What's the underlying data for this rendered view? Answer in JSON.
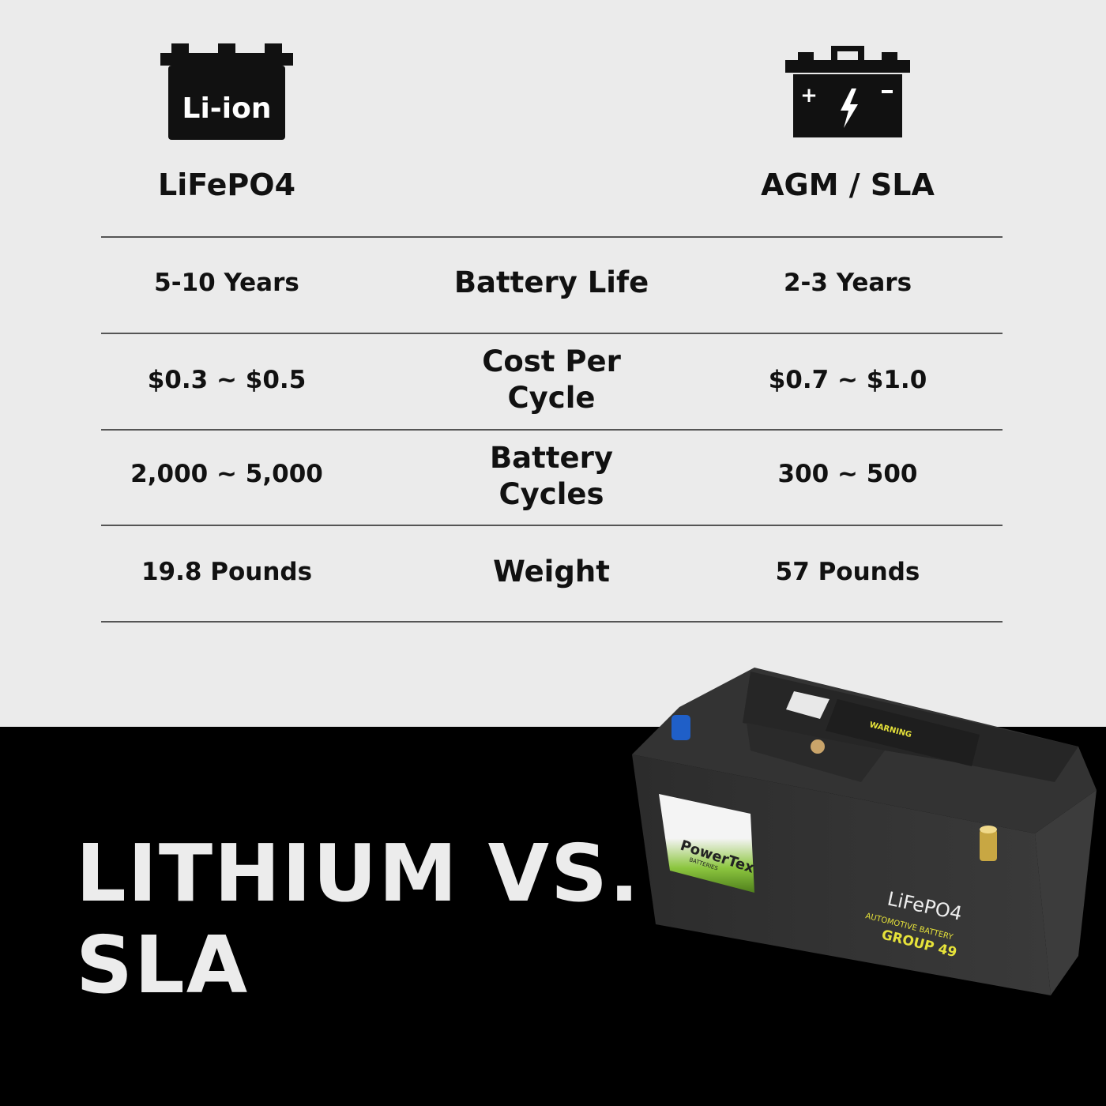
{
  "header": {
    "left": {
      "icon": "li-ion-battery-icon",
      "icon_text": "Li-ion",
      "label": "LiFePO4"
    },
    "right": {
      "icon": "lead-acid-battery-icon",
      "label": "AGM / SLA"
    }
  },
  "rows": [
    {
      "left": "5-10 Years",
      "label": "Battery Life",
      "right": "2-3 Years"
    },
    {
      "left": "$0.3 ~ $0.5",
      "label": "Cost Per Cycle",
      "right": "$0.7 ~ $1.0"
    },
    {
      "left": "2,000 ~ 5,000",
      "label": "Battery Cycles",
      "right": "300 ~ 500"
    },
    {
      "left": "19.8 Pounds",
      "label": "Weight",
      "right": "57 Pounds"
    }
  ],
  "title": {
    "line1": "LITHIUM VS.",
    "line2": "SLA"
  },
  "product": {
    "brand": "PowerTex",
    "brand_sub": "BATTERIES",
    "chem": "LiFePO4",
    "type": "AUTOMOTIVE BATTERY",
    "group": "GROUP 49",
    "warning": "WARNING"
  },
  "colors": {
    "background": "#ebebeb",
    "bottom": "#000000",
    "accent_yellow": "#e6e23a",
    "accent_green": "#8cc63f"
  }
}
